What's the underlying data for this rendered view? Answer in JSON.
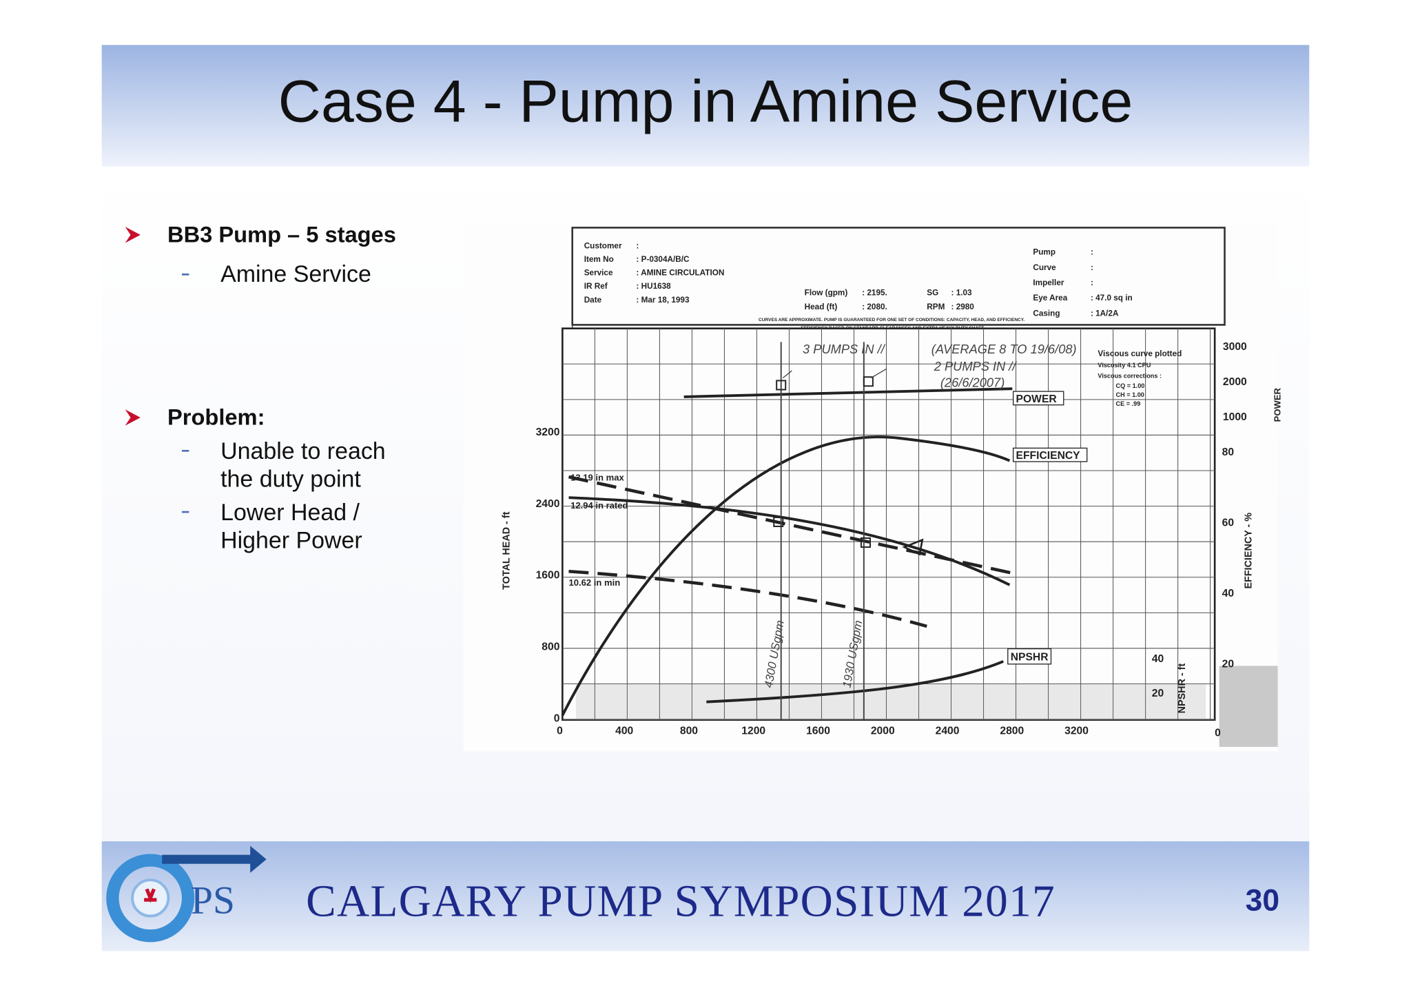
{
  "header": {
    "title": "Case 4 - Pump in Amine Service"
  },
  "bullets": [
    {
      "text": "BB3 Pump – 5 stages",
      "items": [
        [
          "Amine Service"
        ]
      ]
    },
    {
      "text": "Problem:",
      "items": [
        [
          "Unable to reach",
          "the duty point"
        ],
        [
          "Lower Head /",
          "Higher Power"
        ]
      ]
    }
  ],
  "figure": {
    "info_left": [
      [
        "Customer",
        ":"
      ],
      [
        "Item No",
        ": P-0304A/B/C"
      ],
      [
        "Service",
        ": AMINE CIRCULATION"
      ],
      [
        "IR Ref",
        ": HU1638"
      ],
      [
        "Date",
        ": Mar 18, 1993"
      ]
    ],
    "info_mid": [
      [
        "Flow (gpm)",
        ": 2195.",
        "SG",
        ": 1.03"
      ],
      [
        "Head (ft)",
        ": 2080.",
        "RPM",
        ": 2980"
      ]
    ],
    "info_right": [
      [
        "Pump",
        ":"
      ],
      [
        "Curve",
        ":"
      ],
      [
        "Impeller",
        ":"
      ],
      [
        "Eye Area",
        ": 47.0 sq in"
      ],
      [
        "Casing",
        ": 1A/2A"
      ]
    ],
    "notes": [
      "CURVES ARE APPROXIMATE. PUMP IS GUARANTEED FOR ONE SET OF CONDITIONS: CAPACITY, HEAD, AND EFFICIENCY.",
      "EFFICIENCY BASED ON STANDARD CLEARANCES AND EXTRA HEAVY DUTY SHAFT."
    ],
    "x_ticks": [
      "0",
      "400",
      "800",
      "1200",
      "1600",
      "2000",
      "2400",
      "2800",
      "3200"
    ],
    "head_ticks": [
      "0",
      "800",
      "1600",
      "2400",
      "3200"
    ],
    "head_title": "TOTAL HEAD - ft",
    "power_ticks": [
      "3000",
      "2000",
      "1000"
    ],
    "power_title": "POWER",
    "efficiency_ticks": [
      "80",
      "60",
      "40",
      "20"
    ],
    "efficiency_title": "EFFICIENCY - %",
    "npsh_ticks": [
      "40",
      "20"
    ],
    "npsh_title": "NPSHR - ft",
    "npsh_zero": "0",
    "curve_labels": {
      "power": "POWER",
      "efficiency": "EFFICIENCY",
      "npsh": "NPSHR"
    },
    "impellers": [
      "13.19 in max",
      "12.94 in rated",
      "10.62 in min"
    ],
    "viscous": [
      "Viscous curve plotted",
      "Viscosity 4.1 CPU",
      "Viscous corrections :",
      "CQ = 1.00",
      "CH = 1.00",
      "CE = .99"
    ],
    "handwritten": [
      "3 PUMPS IN //",
      "(AVERAGE 8 TO 19/6/08)",
      "2 PUMPS IN //",
      "(26/6/2007)",
      "4300 USgpm",
      "1930 USgpm"
    ]
  },
  "footer": {
    "logo": "PS",
    "title": "CALGARY PUMP SYMPOSIUM 2017",
    "page": "30"
  }
}
